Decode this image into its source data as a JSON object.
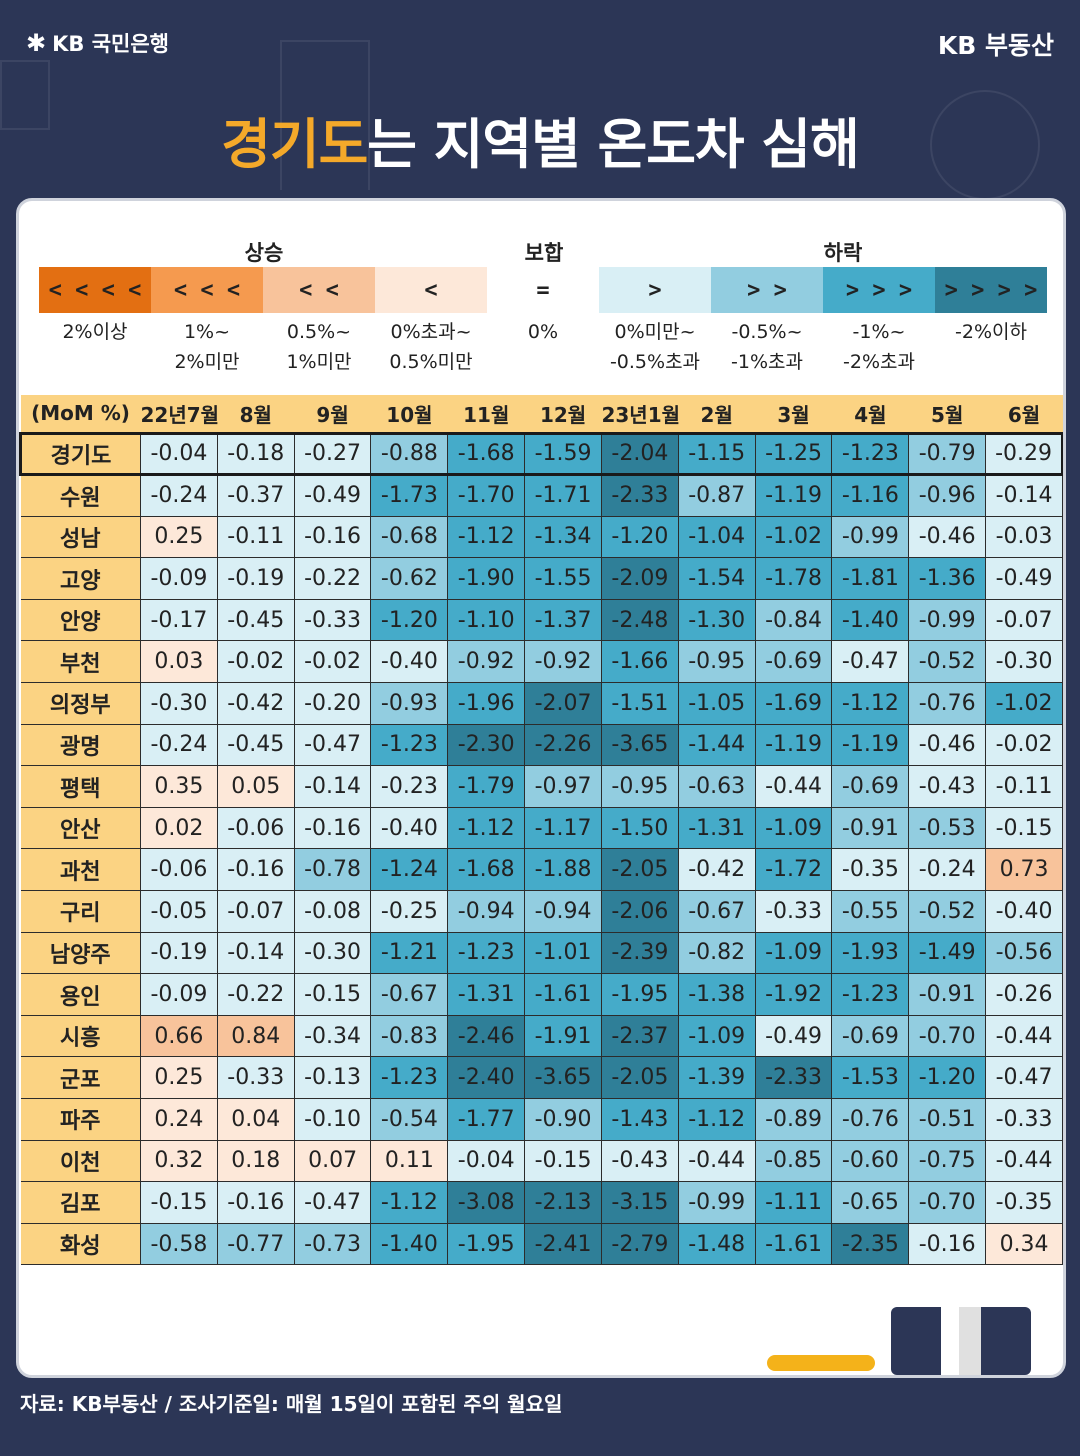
{
  "header": {
    "brand_left": "KB 국민은행",
    "brand_right": "KB 부동산"
  },
  "title": {
    "highlight": "경기도",
    "rest": "는 지역별 온도차 심해"
  },
  "legend": {
    "groups": {
      "rise": "상승",
      "flat": "보합",
      "fall": "하락"
    },
    "items": [
      {
        "symbol": "< < < <",
        "color": "#e36f12",
        "desc": [
          "2%이상",
          ""
        ]
      },
      {
        "symbol": "< < <",
        "color": "#f59a4f",
        "desc": [
          "1%~",
          "2%미만"
        ]
      },
      {
        "symbol": "< <",
        "color": "#f8c39b",
        "desc": [
          "0.5%~",
          "1%미만"
        ]
      },
      {
        "symbol": "<",
        "color": "#fde8d9",
        "desc": [
          "0%초과~",
          "0.5%미만"
        ]
      },
      {
        "symbol": "=",
        "color": "#ffffff",
        "desc": [
          "0%",
          ""
        ]
      },
      {
        "symbol": ">",
        "color": "#d9eff5",
        "desc": [
          "0%미만~",
          "-0.5%초과"
        ]
      },
      {
        "symbol": "> >",
        "color": "#92cde0",
        "desc": [
          "-0.5%~",
          "-1%초과"
        ]
      },
      {
        "symbol": "> > >",
        "color": "#45abc9",
        "desc": [
          "-1%~",
          "-2%초과"
        ]
      },
      {
        "symbol": "> > > >",
        "color": "#2f7f98",
        "desc": [
          "-2%이하",
          ""
        ]
      }
    ]
  },
  "chart_data": {
    "type": "heatmap",
    "corner_label": "(MoM %)",
    "columns": [
      "22년7월",
      "8월",
      "9월",
      "10월",
      "11월",
      "12월",
      "23년1월",
      "2월",
      "3월",
      "4월",
      "5월",
      "6월"
    ],
    "rows": [
      {
        "region": "경기도",
        "values": [
          -0.04,
          -0.18,
          -0.27,
          -0.88,
          -1.68,
          -1.59,
          -2.04,
          -1.15,
          -1.25,
          -1.23,
          -0.79,
          -0.29
        ]
      },
      {
        "region": "수원",
        "values": [
          -0.24,
          -0.37,
          -0.49,
          -1.73,
          -1.7,
          -1.71,
          -2.33,
          -0.87,
          -1.19,
          -1.16,
          -0.96,
          -0.14
        ]
      },
      {
        "region": "성남",
        "values": [
          0.25,
          -0.11,
          -0.16,
          -0.68,
          -1.12,
          -1.34,
          -1.2,
          -1.04,
          -1.02,
          -0.99,
          -0.46,
          -0.03
        ]
      },
      {
        "region": "고양",
        "values": [
          -0.09,
          -0.19,
          -0.22,
          -0.62,
          -1.9,
          -1.55,
          -2.09,
          -1.54,
          -1.78,
          -1.81,
          -1.36,
          -0.49
        ]
      },
      {
        "region": "안양",
        "values": [
          -0.17,
          -0.45,
          -0.33,
          -1.2,
          -1.1,
          -1.37,
          -2.48,
          -1.3,
          -0.84,
          -1.4,
          -0.99,
          -0.07
        ]
      },
      {
        "region": "부천",
        "values": [
          0.03,
          -0.02,
          -0.02,
          -0.4,
          -0.92,
          -0.92,
          -1.66,
          -0.95,
          -0.69,
          -0.47,
          -0.52,
          -0.3
        ]
      },
      {
        "region": "의정부",
        "values": [
          -0.3,
          -0.42,
          -0.2,
          -0.93,
          -1.96,
          -2.07,
          -1.51,
          -1.05,
          -1.69,
          -1.12,
          -0.76,
          -1.02
        ]
      },
      {
        "region": "광명",
        "values": [
          -0.24,
          -0.45,
          -0.47,
          -1.23,
          -2.3,
          -2.26,
          -3.65,
          -1.44,
          -1.19,
          -1.19,
          -0.46,
          -0.02
        ]
      },
      {
        "region": "평택",
        "values": [
          0.35,
          0.05,
          -0.14,
          -0.23,
          -1.79,
          -0.97,
          -0.95,
          -0.63,
          -0.44,
          -0.69,
          -0.43,
          -0.11
        ]
      },
      {
        "region": "안산",
        "values": [
          0.02,
          -0.06,
          -0.16,
          -0.4,
          -1.12,
          -1.17,
          -1.5,
          -1.31,
          -1.09,
          -0.91,
          -0.53,
          -0.15
        ]
      },
      {
        "region": "과천",
        "values": [
          -0.06,
          -0.16,
          -0.78,
          -1.24,
          -1.68,
          -1.88,
          -2.05,
          -0.42,
          -1.72,
          -0.35,
          -0.24,
          0.73
        ]
      },
      {
        "region": "구리",
        "values": [
          -0.05,
          -0.07,
          -0.08,
          -0.25,
          -0.94,
          -0.94,
          -2.06,
          -0.67,
          -0.33,
          -0.55,
          -0.52,
          -0.4
        ]
      },
      {
        "region": "남양주",
        "values": [
          -0.19,
          -0.14,
          -0.3,
          -1.21,
          -1.23,
          -1.01,
          -2.39,
          -0.82,
          -1.09,
          -1.93,
          -1.49,
          -0.56
        ]
      },
      {
        "region": "용인",
        "values": [
          -0.09,
          -0.22,
          -0.15,
          -0.67,
          -1.31,
          -1.61,
          -1.95,
          -1.38,
          -1.92,
          -1.23,
          -0.91,
          -0.26
        ]
      },
      {
        "region": "시흥",
        "values": [
          0.66,
          0.84,
          -0.34,
          -0.83,
          -2.46,
          -1.91,
          -2.37,
          -1.09,
          -0.49,
          -0.69,
          -0.7,
          -0.44
        ]
      },
      {
        "region": "군포",
        "values": [
          0.25,
          -0.33,
          -0.13,
          -1.23,
          -2.4,
          -3.65,
          -2.05,
          -1.39,
          -2.33,
          -1.53,
          -1.2,
          -0.47
        ]
      },
      {
        "region": "파주",
        "values": [
          0.24,
          0.04,
          -0.1,
          -0.54,
          -1.77,
          -0.9,
          -1.43,
          -1.12,
          -0.89,
          -0.76,
          -0.51,
          -0.33
        ]
      },
      {
        "region": "이천",
        "values": [
          0.32,
          0.18,
          0.07,
          0.11,
          -0.04,
          -0.15,
          -0.43,
          -0.44,
          -0.85,
          -0.6,
          -0.75,
          -0.44
        ]
      },
      {
        "region": "김포",
        "values": [
          -0.15,
          -0.16,
          -0.47,
          -1.12,
          -3.08,
          -2.13,
          -3.15,
          -0.99,
          -1.11,
          -0.65,
          -0.7,
          -0.35
        ]
      },
      {
        "region": "화성",
        "values": [
          -0.58,
          -0.77,
          -0.73,
          -1.4,
          -1.95,
          -2.41,
          -2.79,
          -1.48,
          -1.61,
          -2.35,
          -0.16,
          0.34
        ]
      }
    ]
  },
  "footer": "자료: KB부동산 / 조사기준일: 매월 15일이 포함된 주의 월요일"
}
